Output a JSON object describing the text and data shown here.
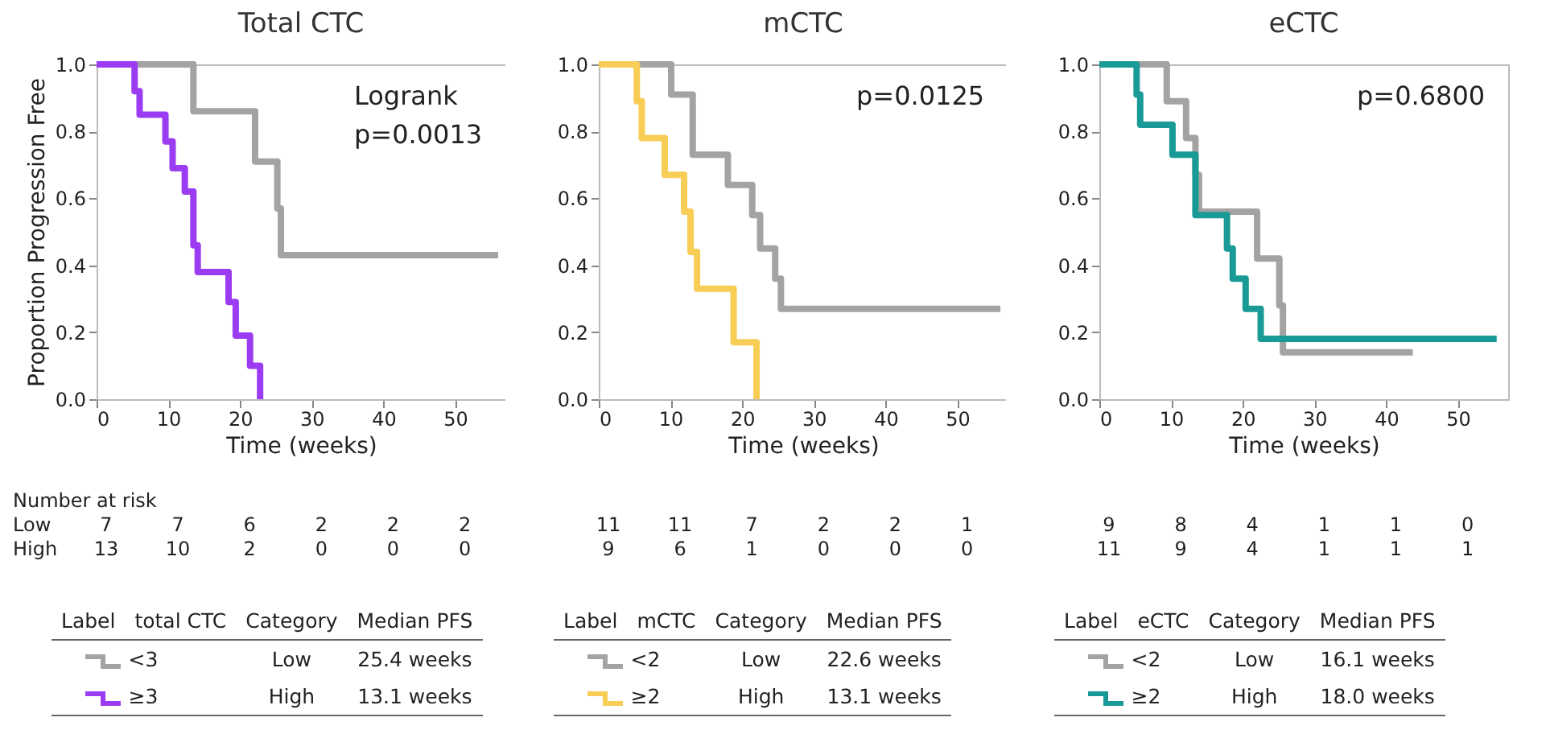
{
  "chart_data": [
    {
      "type": "step",
      "title": "Total CTC",
      "xlabel": "Time (weeks)",
      "ylabel": "Proportion Progression Free",
      "xlim": [
        0,
        57
      ],
      "xticks": [
        0,
        10,
        20,
        30,
        40,
        50
      ],
      "ylim": [
        0,
        1
      ],
      "yticks": [
        {
          "value": 0,
          "label": "0.0"
        },
        {
          "value": 0.2,
          "label": "0.2"
        },
        {
          "value": 0.4,
          "label": "0.4"
        },
        {
          "value": 0.6,
          "label": "0.6"
        },
        {
          "value": 0.8,
          "label": "0.8"
        },
        {
          "value": 1,
          "label": "1.0"
        }
      ],
      "legend": "bottom",
      "grid": false,
      "series": [
        {
          "name": "<3",
          "color": "#a3a3a3",
          "x": [
            0,
            13.5,
            22.1,
            25.2,
            25.7,
            56
          ],
          "values": [
            1,
            0.86,
            0.71,
            0.57,
            0.43,
            0.43
          ]
        },
        {
          "name": "≥3",
          "color": "#9b3cf2",
          "x": [
            0,
            5.3,
            6.0,
            9.6,
            10.6,
            12.3,
            13.5,
            14.1,
            18.4,
            19.4,
            21.4,
            22.8
          ],
          "values": [
            1,
            0.92,
            0.85,
            0.77,
            0.69,
            0.62,
            0.46,
            0.38,
            0.29,
            0.19,
            0.1,
            0
          ]
        }
      ],
      "annotations": [
        "Logrank",
        "p=0.0013",
        "Low 7 7 6 2 2 2",
        "High 13 10 2 0 0 0",
        "Number at risk",
        "Label",
        "total CTC",
        "Category",
        "Median PFS",
        "Low",
        "25.4 weeks",
        "High",
        "13.1 weeks"
      ]
    },
    {
      "type": "step",
      "title": "mCTC",
      "xlabel": "Time (weeks)",
      "xlim": [
        0,
        57
      ],
      "xticks": [
        0,
        10,
        20,
        30,
        40,
        50
      ],
      "ylim": [
        0,
        1
      ],
      "yticks": [
        {
          "value": 0,
          "label": "0.0"
        },
        {
          "value": 0.2,
          "label": "0.2"
        },
        {
          "value": 0.4,
          "label": "0.4"
        },
        {
          "value": 0.6,
          "label": "0.6"
        },
        {
          "value": 0.8,
          "label": "0.8"
        },
        {
          "value": 1,
          "label": "1.0"
        }
      ],
      "legend": "bottom",
      "grid": false,
      "series": [
        {
          "name": "<2",
          "color": "#a3a3a3",
          "x": [
            0,
            10.1,
            13.1,
            18.0,
            21.4,
            22.5,
            24.6,
            25.4,
            56
          ],
          "values": [
            1,
            0.91,
            0.73,
            0.64,
            0.55,
            0.45,
            0.36,
            0.27,
            0.27
          ]
        },
        {
          "name": "≥2",
          "color": "#f7cd55",
          "x": [
            0,
            5.3,
            6.0,
            9.2,
            11.9,
            12.8,
            13.7,
            18.8,
            22.0
          ],
          "values": [
            1,
            0.89,
            0.78,
            0.67,
            0.56,
            0.44,
            0.33,
            0.17,
            0
          ]
        }
      ],
      "annotations": [
        "p=0.0125",
        "11 11 7 2 2 1",
        "9 6 1 0 0 0",
        "Label",
        "mCTC",
        "Category",
        "Median PFS",
        "Low",
        "22.6 weeks",
        "High",
        "13.1 weeks"
      ]
    },
    {
      "type": "step",
      "title": "eCTC",
      "xlabel": "Time (weeks)",
      "xlim": [
        0,
        57
      ],
      "xticks": [
        0,
        10,
        20,
        30,
        40,
        50
      ],
      "ylim": [
        0,
        1
      ],
      "yticks": [
        {
          "value": 0,
          "label": "0.0"
        },
        {
          "value": 0.2,
          "label": "0.2"
        },
        {
          "value": 0.4,
          "label": "0.4"
        },
        {
          "value": 0.6,
          "label": "0.6"
        },
        {
          "value": 0.8,
          "label": "0.8"
        },
        {
          "value": 1,
          "label": "1.0"
        }
      ],
      "legend": "bottom",
      "grid": false,
      "series": [
        {
          "name": "<2",
          "color": "#a3a3a3",
          "x": [
            0,
            9.4,
            12.1,
            13.4,
            13.9,
            22.0,
            25.1,
            25.6,
            43.7
          ],
          "values": [
            1,
            0.89,
            0.78,
            0.67,
            0.56,
            0.42,
            0.28,
            0.14,
            0.14
          ]
        },
        {
          "name": "≥2",
          "color": "#1a9a96",
          "x": [
            0,
            5.2,
            5.7,
            10.2,
            13.4,
            17.8,
            18.6,
            20.4,
            22.5,
            55.4
          ],
          "values": [
            1,
            0.91,
            0.82,
            0.73,
            0.55,
            0.45,
            0.36,
            0.27,
            0.18,
            0.18
          ]
        }
      ],
      "annotations": [
        "p=0.6800",
        "9 8 4 1 1 0",
        "11 9 4 1 1 1",
        "Label",
        "eCTC",
        "Category",
        "Median PFS",
        "Low",
        "16.1 weeks",
        "High",
        "18.0 weeks"
      ]
    }
  ]
}
